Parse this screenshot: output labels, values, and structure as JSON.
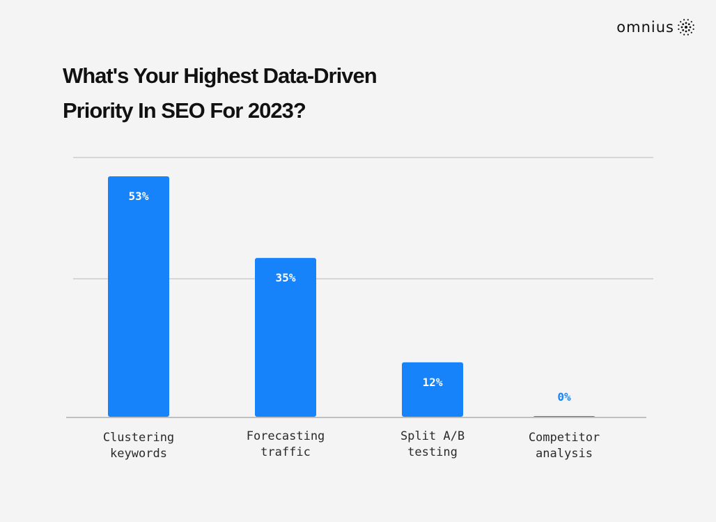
{
  "brand": {
    "name": "omnius"
  },
  "colors": {
    "bar": "#1783fb",
    "value_label_inside": "#ffffff",
    "value_label_outside": "#1783fb",
    "gridline": "#b8b8b8",
    "axis": "#8a8a8a",
    "background": "#f4f4f4"
  },
  "chart_data": {
    "type": "bar",
    "title": "What's Your Highest Data-Driven Priority In SEO For 2023?",
    "title_lines": [
      "What's Your Highest Data-Driven",
      "Priority In SEO For 2023?"
    ],
    "categories": [
      [
        "Clustering",
        "keywords"
      ],
      [
        "Forecasting",
        "traffic"
      ],
      [
        "Split A/B",
        "testing"
      ],
      [
        "Competitor",
        "analysis"
      ]
    ],
    "values": [
      53,
      35,
      12,
      0
    ],
    "value_labels": [
      "53%",
      "35%",
      "12%",
      "0%"
    ],
    "unit": "%",
    "ylim": [
      0,
      53
    ],
    "grid": true,
    "legend": "none",
    "xlabel": "",
    "ylabel": ""
  }
}
